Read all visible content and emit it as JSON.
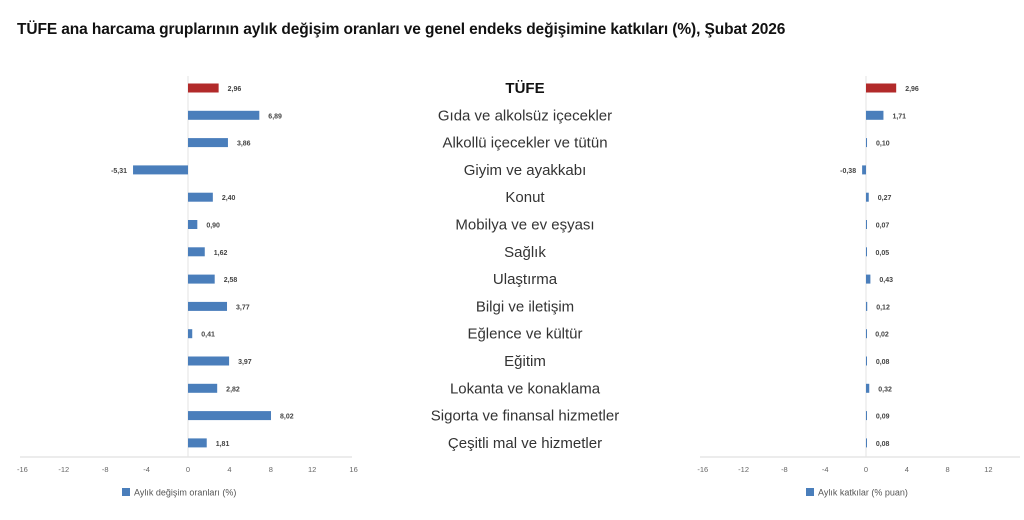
{
  "title": "TÜFE ana harcama gruplarının aylık değişim oranları ve genel endeks değişimine katkıları (%), Şubat 2026",
  "colors": {
    "highlight": "#b22a2a",
    "bar": "#4a7ebb",
    "axis": "#d9d9d9"
  },
  "chart_data": [
    {
      "type": "bar",
      "orientation": "horizontal",
      "categories": [
        "TÜFE",
        "Gıda ve alkolsüz içecekler",
        "Alkollü içecekler ve tütün",
        "Giyim ve ayakkabı",
        "Konut",
        "Mobilya ve ev eşyası",
        "Sağlık",
        "Ulaştırma",
        "Bilgi ve iletişim",
        "Eğlence ve kültür",
        "Eğitim",
        "Lokanta ve konaklama",
        "Sigorta ve finansal hizmetler",
        "Çeşitli mal ve hizmetler"
      ],
      "values": [
        2.96,
        6.89,
        3.86,
        -5.31,
        2.4,
        0.9,
        1.62,
        2.58,
        3.77,
        0.41,
        3.97,
        2.82,
        8.02,
        1.81
      ],
      "labels": [
        "2,96",
        "6,89",
        "3,86",
        "-5,31",
        "2,40",
        "0,90",
        "1,62",
        "2,58",
        "3,77",
        "0,41",
        "3,97",
        "2,82",
        "8,02",
        "1,81"
      ],
      "xlim": [
        -16,
        16
      ],
      "xticks": [
        "-16",
        "-12",
        "-8",
        "-4",
        "0",
        "4",
        "8",
        "12",
        "16"
      ],
      "legend": "Aylık değişim oranları (%)",
      "legend_position": "bottom",
      "grid": false
    },
    {
      "type": "bar",
      "orientation": "horizontal",
      "values": [
        2.96,
        1.71,
        0.1,
        -0.38,
        0.27,
        0.07,
        0.05,
        0.43,
        0.12,
        0.02,
        0.08,
        0.32,
        0.09,
        0.08
      ],
      "labels": [
        "2,96",
        "1,71",
        "0,10",
        "-0,38",
        "0,27",
        "0,07",
        "0,05",
        "0,43",
        "0,12",
        "0,02",
        "0,08",
        "0,32",
        "0,09",
        "0,08"
      ],
      "xlim": [
        -16,
        16
      ],
      "xticks": [
        "-16",
        "-12",
        "-8",
        "-4",
        "0",
        "4",
        "8",
        "12"
      ],
      "legend": "Aylık katkılar (% puan)",
      "legend_position": "bottom",
      "grid": false
    }
  ]
}
